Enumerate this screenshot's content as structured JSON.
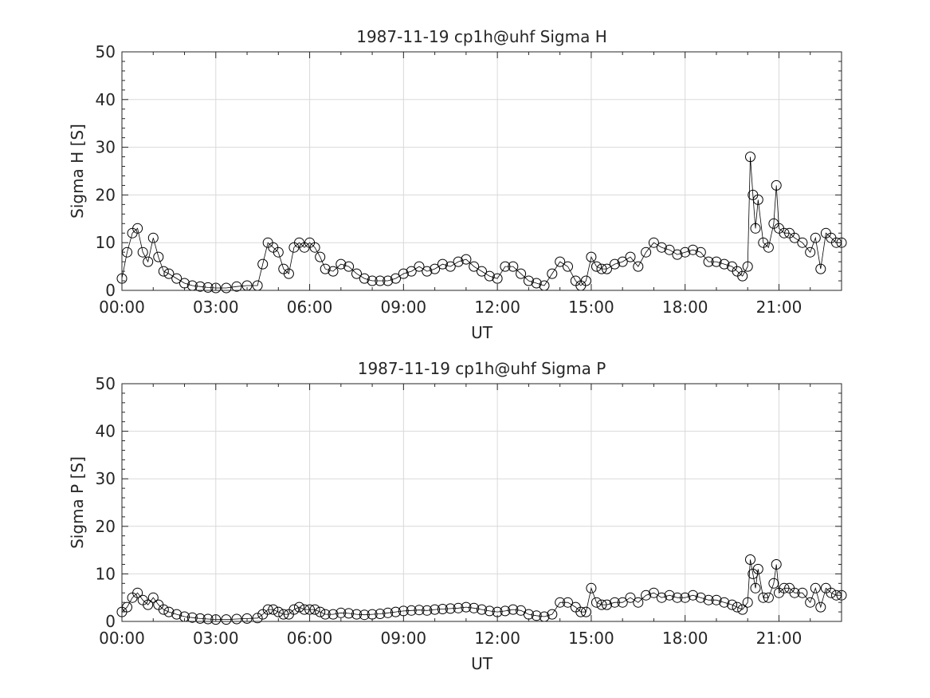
{
  "chart_data": [
    {
      "id": "sigma_h",
      "type": "line",
      "title": "1987-11-19  cp1h@uhf Sigma H",
      "xlabel": "UT",
      "ylabel": "Sigma H [S]",
      "xlim": [
        "00:00",
        "23:00"
      ],
      "ylim": [
        0,
        50
      ],
      "xticks": [
        "00:00",
        "03:00",
        "06:00",
        "09:00",
        "12:00",
        "15:00",
        "18:00",
        "21:00"
      ],
      "yticks": [
        0,
        10,
        20,
        30,
        40,
        50
      ],
      "grid": true,
      "marker": "open-circle",
      "series": [
        {
          "color": "#000000",
          "x": [
            "00:00",
            "00:10",
            "00:20",
            "00:30",
            "00:40",
            "00:50",
            "01:00",
            "01:10",
            "01:20",
            "01:30",
            "01:45",
            "02:00",
            "02:15",
            "02:30",
            "02:45",
            "03:00",
            "03:20",
            "03:40",
            "04:00",
            "04:20",
            "04:30",
            "04:40",
            "04:50",
            "05:00",
            "05:10",
            "05:20",
            "05:30",
            "05:40",
            "05:50",
            "06:00",
            "06:10",
            "06:20",
            "06:30",
            "06:45",
            "07:00",
            "07:15",
            "07:30",
            "07:45",
            "08:00",
            "08:15",
            "08:30",
            "08:45",
            "09:00",
            "09:15",
            "09:30",
            "09:45",
            "10:00",
            "10:15",
            "10:30",
            "10:45",
            "11:00",
            "11:15",
            "11:30",
            "11:45",
            "12:00",
            "12:15",
            "12:30",
            "12:45",
            "13:00",
            "13:15",
            "13:30",
            "13:45",
            "14:00",
            "14:15",
            "14:30",
            "14:40",
            "14:50",
            "15:00",
            "15:10",
            "15:20",
            "15:30",
            "15:45",
            "16:00",
            "16:15",
            "16:30",
            "16:45",
            "17:00",
            "17:15",
            "17:30",
            "17:45",
            "18:00",
            "18:15",
            "18:30",
            "18:45",
            "19:00",
            "19:15",
            "19:30",
            "19:40",
            "19:50",
            "20:00",
            "20:05",
            "20:10",
            "20:15",
            "20:20",
            "20:30",
            "20:40",
            "20:50",
            "20:55",
            "21:00",
            "21:10",
            "21:20",
            "21:30",
            "21:45",
            "22:00",
            "22:10",
            "22:20",
            "22:30",
            "22:40",
            "22:50",
            "23:00"
          ],
          "values": [
            2.5,
            8,
            12,
            13,
            8,
            6,
            11,
            7,
            4,
            3.5,
            2.5,
            1.5,
            1,
            0.8,
            0.6,
            0.5,
            0.5,
            0.8,
            1,
            1,
            5.5,
            10,
            9,
            8,
            4.5,
            3.5,
            9,
            10,
            9,
            10,
            9,
            7,
            4.5,
            4,
            5.5,
            5,
            3.5,
            2.5,
            2,
            2,
            2,
            2.5,
            3.5,
            4,
            5,
            4,
            4.5,
            5.5,
            5,
            6,
            6.5,
            5,
            4,
            3,
            2.5,
            5,
            5,
            3.5,
            2,
            1.5,
            1,
            3.5,
            6,
            5,
            2,
            1,
            2,
            7,
            5,
            4.5,
            4.5,
            5.5,
            6,
            7,
            5,
            8,
            10,
            9,
            8.5,
            7.5,
            8,
            8.5,
            8,
            6,
            6,
            5.5,
            5,
            4,
            3,
            5,
            28,
            20,
            13,
            19,
            10,
            9,
            14,
            22,
            13,
            12,
            12,
            11,
            10,
            8,
            11,
            4.5,
            12,
            11,
            10,
            10
          ]
        }
      ]
    },
    {
      "id": "sigma_p",
      "type": "line",
      "title": "1987-11-19  cp1h@uhf Sigma P",
      "xlabel": "UT",
      "ylabel": "Sigma P [S]",
      "xlim": [
        "00:00",
        "23:00"
      ],
      "ylim": [
        0,
        50
      ],
      "xticks": [
        "00:00",
        "03:00",
        "06:00",
        "09:00",
        "12:00",
        "15:00",
        "18:00",
        "21:00"
      ],
      "yticks": [
        0,
        10,
        20,
        30,
        40,
        50
      ],
      "grid": true,
      "marker": "open-circle",
      "series": [
        {
          "color": "#000000",
          "x": [
            "00:00",
            "00:10",
            "00:20",
            "00:30",
            "00:40",
            "00:50",
            "01:00",
            "01:10",
            "01:20",
            "01:30",
            "01:45",
            "02:00",
            "02:15",
            "02:30",
            "02:45",
            "03:00",
            "03:20",
            "03:40",
            "04:00",
            "04:20",
            "04:30",
            "04:40",
            "04:50",
            "05:00",
            "05:10",
            "05:20",
            "05:30",
            "05:40",
            "05:50",
            "06:00",
            "06:10",
            "06:20",
            "06:30",
            "06:45",
            "07:00",
            "07:15",
            "07:30",
            "07:45",
            "08:00",
            "08:15",
            "08:30",
            "08:45",
            "09:00",
            "09:15",
            "09:30",
            "09:45",
            "10:00",
            "10:15",
            "10:30",
            "10:45",
            "11:00",
            "11:15",
            "11:30",
            "11:45",
            "12:00",
            "12:15",
            "12:30",
            "12:45",
            "13:00",
            "13:15",
            "13:30",
            "13:45",
            "14:00",
            "14:15",
            "14:30",
            "14:40",
            "14:50",
            "15:00",
            "15:10",
            "15:20",
            "15:30",
            "15:45",
            "16:00",
            "16:15",
            "16:30",
            "16:45",
            "17:00",
            "17:15",
            "17:30",
            "17:45",
            "18:00",
            "18:15",
            "18:30",
            "18:45",
            "19:00",
            "19:15",
            "19:30",
            "19:40",
            "19:50",
            "20:00",
            "20:05",
            "20:10",
            "20:15",
            "20:20",
            "20:30",
            "20:40",
            "20:50",
            "20:55",
            "21:00",
            "21:10",
            "21:20",
            "21:30",
            "21:45",
            "22:00",
            "22:10",
            "22:20",
            "22:30",
            "22:40",
            "22:50",
            "23:00"
          ],
          "values": [
            2,
            3,
            5,
            6,
            4.5,
            3.5,
            5,
            3.5,
            2.5,
            2,
            1.5,
            1,
            0.8,
            0.6,
            0.5,
            0.4,
            0.4,
            0.5,
            0.6,
            0.7,
            1.5,
            2.5,
            2.5,
            2,
            1.5,
            1.5,
            2.5,
            3,
            2.5,
            2.5,
            2.5,
            2,
            1.5,
            1.5,
            1.8,
            1.7,
            1.5,
            1.4,
            1.5,
            1.6,
            1.8,
            2,
            2.2,
            2.3,
            2.4,
            2.3,
            2.5,
            2.6,
            2.7,
            2.8,
            3,
            2.8,
            2.5,
            2.2,
            2,
            2.2,
            2.5,
            2.3,
            1.5,
            1.2,
            1,
            1.5,
            4,
            4,
            3,
            2,
            2,
            7,
            4,
            3.5,
            3.5,
            4,
            4,
            5,
            4,
            5.5,
            6,
            5,
            5.5,
            5,
            5,
            5.5,
            5,
            4.5,
            4.5,
            4,
            3.5,
            3,
            2.5,
            4,
            13,
            10,
            7,
            11,
            5,
            5,
            8,
            12,
            6,
            7,
            7,
            6,
            6,
            4,
            7,
            3,
            7,
            6,
            5.5,
            5.5
          ]
        }
      ]
    }
  ]
}
